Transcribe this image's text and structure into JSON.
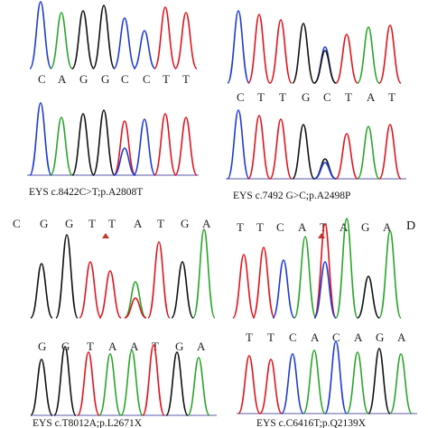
{
  "figure": {
    "panels": [
      {
        "id": "A",
        "top_bases": [
          "C",
          "A",
          "G",
          "G",
          "C",
          "C",
          "T",
          "T"
        ],
        "bottom_bases": [],
        "caption": "EYS c.8422C>T;p.A2808T",
        "panel_letter": ""
      },
      {
        "id": "B",
        "top_bases": [
          "C",
          "T",
          "T",
          "G",
          "C",
          "T",
          "A",
          "T"
        ],
        "bottom_bases": [],
        "caption": "EYS c.7492 G>C;p.A2498P",
        "panel_letter": ""
      },
      {
        "id": "C",
        "top_bases": [
          "C",
          "G",
          "G",
          "T",
          "T",
          "A",
          "T",
          "G",
          "A"
        ],
        "bottom_bases": [
          "G",
          "G",
          "T",
          "A",
          "A",
          "T",
          "G",
          "A"
        ],
        "caption": "EYS c.T8012A;p.L2671X",
        "panel_letter": ""
      },
      {
        "id": "D",
        "top_bases": [
          "T",
          "T",
          "C",
          "A",
          "T",
          "A",
          "G",
          "A"
        ],
        "bottom_bases": [
          "T",
          "T",
          "C",
          "A",
          "C",
          "A",
          "G",
          "A"
        ],
        "caption": "EYS c.C6416T;p.Q2139X",
        "panel_letter": "D"
      }
    ],
    "colors": {
      "A": "#2aa52a",
      "C": "#1f3bd6",
      "G": "#111111",
      "T": "#e0141e",
      "marker": "#c0392b",
      "baseline": "#5a5aa8"
    }
  }
}
